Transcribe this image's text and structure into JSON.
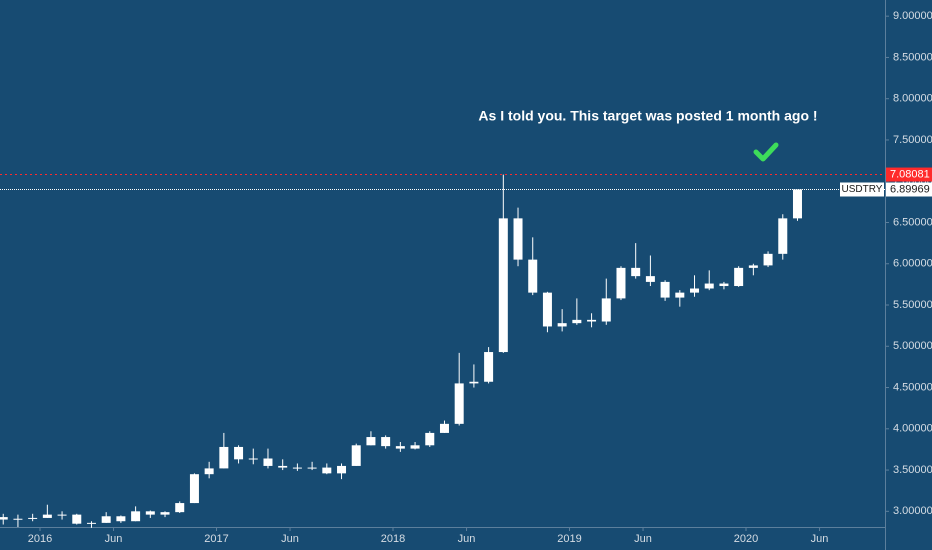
{
  "chart_data": {
    "type": "candlestick",
    "symbol": "USDTRY",
    "color": "#ffffff",
    "annotation": "As I told you. This target was posted 1 month ago !",
    "x": [
      "2015-10",
      "2015-11",
      "2015-12",
      "2016-01",
      "2016-02",
      "2016-03",
      "2016-04",
      "2016-05",
      "2016-06",
      "2016-07",
      "2016-08",
      "2016-09",
      "2016-10",
      "2016-11",
      "2016-12",
      "2017-01",
      "2017-02",
      "2017-03",
      "2017-04",
      "2017-05",
      "2017-06",
      "2017-07",
      "2017-08",
      "2017-09",
      "2017-10",
      "2017-11",
      "2017-12",
      "2018-01",
      "2018-02",
      "2018-03",
      "2018-04",
      "2018-05",
      "2018-06",
      "2018-07",
      "2018-08",
      "2018-09",
      "2018-10",
      "2018-11",
      "2018-12",
      "2019-01",
      "2019-02",
      "2019-03",
      "2019-04",
      "2019-05",
      "2019-06",
      "2019-07",
      "2019-08",
      "2019-09",
      "2019-10",
      "2019-11",
      "2019-12",
      "2020-01",
      "2020-02",
      "2020-03",
      "2020-04"
    ],
    "open": [
      2.93,
      2.9,
      2.91,
      2.92,
      2.96,
      2.96,
      2.85,
      2.86,
      2.94,
      2.88,
      3.0,
      2.96,
      2.99,
      3.1,
      3.45,
      3.52,
      3.78,
      3.63,
      3.64,
      3.55,
      3.53,
      3.52,
      3.53,
      3.46,
      3.55,
      3.8,
      3.9,
      3.79,
      3.76,
      3.8,
      3.95,
      4.06,
      4.55,
      4.57,
      4.93,
      6.55,
      6.05,
      5.65,
      5.24,
      5.28,
      5.32,
      5.3,
      5.58,
      5.95,
      5.85,
      5.78,
      5.59,
      5.65,
      5.7,
      5.76,
      5.73,
      5.95,
      5.98,
      6.12,
      6.55
    ],
    "high": [
      2.97,
      2.96,
      2.97,
      3.08,
      3.0,
      2.97,
      2.88,
      2.99,
      2.95,
      3.06,
      3.01,
      3.0,
      3.12,
      3.46,
      3.6,
      3.95,
      3.8,
      3.76,
      3.76,
      3.63,
      3.58,
      3.6,
      3.58,
      3.58,
      3.82,
      3.97,
      3.92,
      3.84,
      3.84,
      3.97,
      4.1,
      4.92,
      4.78,
      4.99,
      7.08,
      6.68,
      6.32,
      5.66,
      5.45,
      5.58,
      5.4,
      5.82,
      5.97,
      6.25,
      6.1,
      5.8,
      5.68,
      5.86,
      5.92,
      5.78,
      5.97,
      6.0,
      6.15,
      6.6,
      6.9
    ],
    "low": [
      2.84,
      2.81,
      2.88,
      2.92,
      2.9,
      2.84,
      2.8,
      2.86,
      2.86,
      2.88,
      2.92,
      2.93,
      2.98,
      3.1,
      3.4,
      3.52,
      3.58,
      3.57,
      3.52,
      3.5,
      3.49,
      3.5,
      3.45,
      3.39,
      3.55,
      3.8,
      3.76,
      3.72,
      3.75,
      3.78,
      3.95,
      4.04,
      4.5,
      4.55,
      4.92,
      5.97,
      5.62,
      5.17,
      5.18,
      5.26,
      5.23,
      5.26,
      5.56,
      5.82,
      5.73,
      5.55,
      5.48,
      5.6,
      5.68,
      5.69,
      5.72,
      5.86,
      5.96,
      6.05,
      6.52
    ],
    "close": [
      2.9,
      2.91,
      2.92,
      2.96,
      2.96,
      2.85,
      2.86,
      2.94,
      2.88,
      3.0,
      2.96,
      2.99,
      3.1,
      3.45,
      3.52,
      3.78,
      3.63,
      3.64,
      3.55,
      3.53,
      3.52,
      3.53,
      3.46,
      3.55,
      3.8,
      3.9,
      3.79,
      3.76,
      3.8,
      3.95,
      4.06,
      4.55,
      4.57,
      4.93,
      6.55,
      6.05,
      5.65,
      5.24,
      5.28,
      5.32,
      5.3,
      5.58,
      5.95,
      5.85,
      5.78,
      5.59,
      5.65,
      5.7,
      5.76,
      5.73,
      5.95,
      5.98,
      6.12,
      6.55,
      6.9
    ],
    "ylim": [
      2.81,
      9.196
    ],
    "yticks": [
      {
        "value": 3,
        "label": "3.00000"
      },
      {
        "value": 3.5,
        "label": "3.50000"
      },
      {
        "value": 4,
        "label": "4.00000"
      },
      {
        "value": 4.5,
        "label": "4.50000"
      },
      {
        "value": 5,
        "label": "5.00000"
      },
      {
        "value": 5.5,
        "label": "5.50000"
      },
      {
        "value": 6,
        "label": "6.00000"
      },
      {
        "value": 6.5,
        "label": "6.50000"
      },
      {
        "value": 7,
        "label": "7.00000"
      },
      {
        "value": 7.5,
        "label": "7.50000"
      },
      {
        "value": 8,
        "label": "8.00000"
      },
      {
        "value": 8.5,
        "label": "8.50000"
      },
      {
        "value": 9,
        "label": "9.00000"
      }
    ],
    "xticks": [
      {
        "value": "2016-01",
        "label": "2016"
      },
      {
        "value": "2016-06",
        "label": "Jun"
      },
      {
        "value": "2017-01",
        "label": "2017"
      },
      {
        "value": "2017-06",
        "label": "Jun"
      },
      {
        "value": "2018-01",
        "label": "2018"
      },
      {
        "value": "2018-06",
        "label": "Jun"
      },
      {
        "value": "2019-01",
        "label": "2019"
      },
      {
        "value": "2019-06",
        "label": "Jun"
      },
      {
        "value": "2020-01",
        "label": "2020"
      },
      {
        "value": "2020-06",
        "label": "Jun"
      }
    ],
    "price_lines": [
      {
        "value": 7.08081,
        "label": 7.08081,
        "color": "#ff2a2a"
      },
      {
        "value": 6.89969,
        "label": 6.89969,
        "color": "#ffffff"
      }
    ]
  }
}
